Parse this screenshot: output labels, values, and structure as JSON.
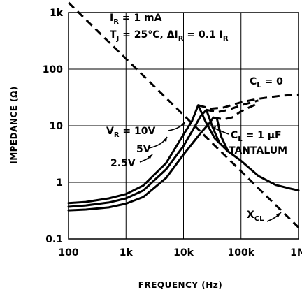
{
  "chart_data": {
    "type": "line",
    "xlabel": "FREQUENCY (Hz)",
    "ylabel": "IMPEDANCE (Ω)",
    "x_scale": "log",
    "y_scale": "log",
    "xlim": [
      100,
      1000000
    ],
    "ylim": [
      0.1,
      1000
    ],
    "grid": true,
    "x_ticks": [
      "100",
      "1k",
      "10k",
      "100k",
      "1M"
    ],
    "y_ticks": [
      "0.1",
      "1",
      "10",
      "100",
      "1k"
    ],
    "conditions": {
      "ir": {
        "main": "I",
        "sub": "R",
        "rest": " = 1 mA"
      },
      "tj": {
        "main": "T",
        "sub": "J",
        "rest": " = 25°C, ΔI",
        "sub2": "R",
        "rest2": " = 0.1 I",
        "sub3": "R"
      }
    },
    "labels": {
      "cl0": {
        "main": "C",
        "sub": "L",
        "rest": " = 0"
      },
      "cl1": {
        "main": "C",
        "sub": "L",
        "rest": " = 1 μF"
      },
      "tantalum": "TANTALUM",
      "vr10": {
        "main": "V",
        "sub": "R",
        "rest": " = 10V"
      },
      "v5": "5V",
      "v25": "2.5V",
      "xcl": {
        "main": "X",
        "sub": "CL"
      }
    },
    "series": [
      {
        "name": "V_R = 10V, C_L = 1 μF",
        "style": "solid",
        "x": [
          100,
          200,
          500,
          1000,
          2000,
          5000,
          10000,
          14000,
          18000,
          24000,
          35000,
          60000
        ],
        "y": [
          0.43,
          0.45,
          0.52,
          0.62,
          0.88,
          2.2,
          7.0,
          12.0,
          23.0,
          12.0,
          6.0,
          3.5
        ]
      },
      {
        "name": "5V, C_L = 1 μF",
        "style": "solid",
        "x": [
          100,
          200,
          500,
          1000,
          2000,
          5000,
          10000,
          16000,
          20000,
          25000,
          32000,
          42000,
          60000
        ],
        "y": [
          0.37,
          0.39,
          0.44,
          0.52,
          0.72,
          1.7,
          4.4,
          10.0,
          15.0,
          19.0,
          9.5,
          5.0,
          3.5
        ]
      },
      {
        "name": "2.5V, C_L = 1 μF",
        "style": "solid",
        "x": [
          100,
          200,
          500,
          1000,
          2000,
          5000,
          10000,
          20000,
          28000,
          33000,
          38000,
          45000,
          60000
        ],
        "y": [
          0.32,
          0.33,
          0.36,
          0.42,
          0.55,
          1.2,
          3.1,
          7.5,
          11.0,
          14.0,
          13.5,
          6.5,
          3.5
        ]
      },
      {
        "name": "TANTALUM (C_L = 1 μF) common branch",
        "style": "solid",
        "x": [
          60000,
          100000,
          200000,
          400000,
          700000,
          1000000
        ],
        "y": [
          3.5,
          2.4,
          1.3,
          0.9,
          0.78,
          0.72
        ]
      },
      {
        "name": "C_L = 0, V_R = 10V",
        "style": "dashed",
        "x": [
          18000,
          30000,
          50000,
          100000,
          200000,
          500000,
          1000000
        ],
        "y": [
          23.0,
          20.0,
          21.0,
          26.0,
          30.0,
          34.0,
          35.5
        ]
      },
      {
        "name": "C_L = 0, 5V",
        "style": "dashed",
        "x": [
          25000,
          40000,
          60000,
          100000,
          200000
        ],
        "y": [
          19.0,
          17.5,
          19.0,
          23.0,
          28.0
        ]
      },
      {
        "name": "C_L = 0, 2.5V",
        "style": "dashed",
        "x": [
          33000,
          50000,
          70000,
          100000,
          200000
        ],
        "y": [
          14.0,
          13.0,
          14.0,
          18.0,
          25.0
        ]
      },
      {
        "name": "X_CL",
        "style": "dashed",
        "x": [
          100,
          1000000
        ],
        "y": [
          1500,
          0.16
        ]
      }
    ]
  }
}
